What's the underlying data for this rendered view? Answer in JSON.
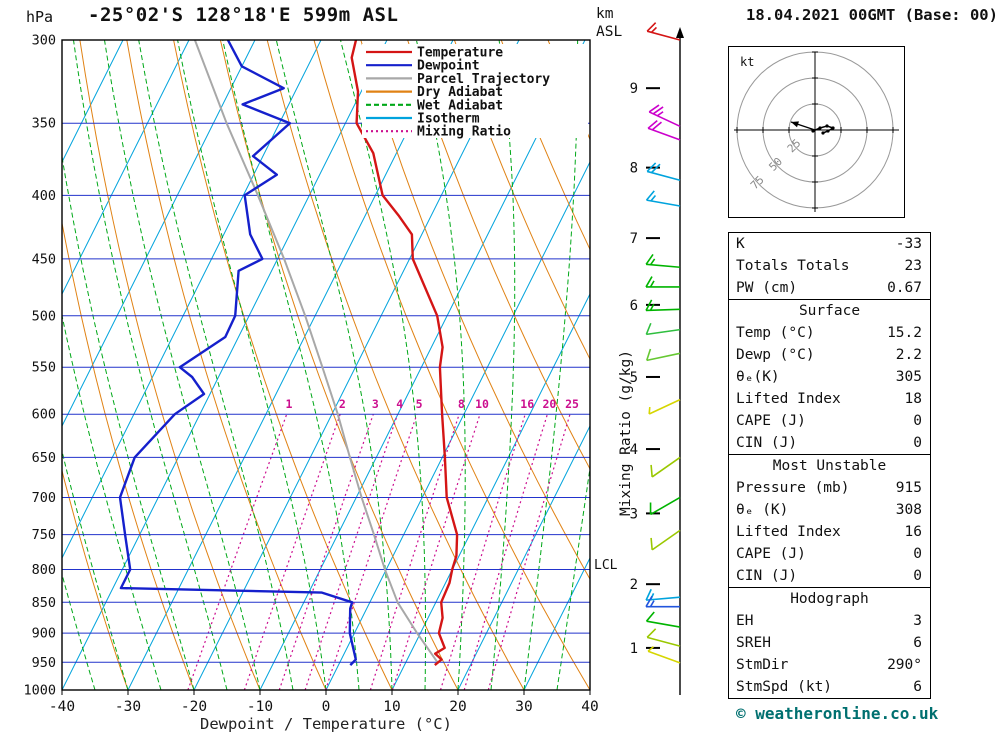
{
  "header": {
    "station": "-25°02'S 128°18'E 599m ASL",
    "datetime": "18.04.2021 00GMT (Base: 00)",
    "pressure_unit": "hPa"
  },
  "footer": "© weatheronline.co.uk",
  "colors": {
    "temperature": "#d41515",
    "dewpoint": "#1520cc",
    "parcel": "#a8a8a8",
    "dry_adiabat": "#e08214",
    "wet_adiabat": "#00a818",
    "isotherm": "#00a3dd",
    "mixing_ratio": "#cc0f8f",
    "isobar": "#2233cc"
  },
  "legend": [
    {
      "label": "Temperature",
      "color": "#d41515",
      "dash": ""
    },
    {
      "label": "Dewpoint",
      "color": "#1520cc",
      "dash": ""
    },
    {
      "label": "Parcel Trajectory",
      "color": "#a8a8a8",
      "dash": ""
    },
    {
      "label": "Dry Adiabat",
      "color": "#e08214",
      "dash": ""
    },
    {
      "label": "Wet Adiabat",
      "color": "#00a818",
      "dash": "5,3"
    },
    {
      "label": "Isotherm",
      "color": "#00a3dd",
      "dash": ""
    },
    {
      "label": "Mixing Ratio",
      "color": "#cc0f8f",
      "dash": "2,3"
    }
  ],
  "chart_data": {
    "type": "skewt_log_p",
    "xlabel": "Dewpoint / Temperature (°C)",
    "x_ticks": [
      -40,
      -30,
      -20,
      -10,
      0,
      10,
      20,
      30,
      40
    ],
    "pressure_levels": [
      300,
      350,
      400,
      450,
      500,
      550,
      600,
      650,
      700,
      750,
      800,
      850,
      900,
      950,
      1000
    ],
    "isotherms": {
      "min": -130,
      "max": 40,
      "step": 10
    },
    "dry_adiabats": {
      "min": -40,
      "max": 100,
      "step": 10
    },
    "wet_adiabats": {
      "min": -40,
      "max": 40,
      "step": 5
    },
    "mixing_ratio": {
      "axis_label": "Mixing Ratio (g/kg)",
      "values": [
        1,
        2,
        3,
        4,
        5,
        8,
        10,
        16,
        20,
        25
      ],
      "top_p": 600,
      "label_p": 593,
      "x_offset": -25
    },
    "km_axis": {
      "unit": "km",
      "ref": "ASL",
      "ticks": [
        {
          "km": 1,
          "p": 925
        },
        {
          "km": 2,
          "p": 822
        },
        {
          "km": 3,
          "p": 721
        },
        {
          "km": 4,
          "p": 640
        },
        {
          "km": 5,
          "p": 560
        },
        {
          "km": 6,
          "p": 490
        },
        {
          "km": 7,
          "p": 433
        },
        {
          "km": 8,
          "p": 380
        },
        {
          "km": 9,
          "p": 328
        }
      ],
      "lcl_label": "LCL",
      "lcl_p": 793
    },
    "temperature_profile": [
      [
        300,
        -44.7
      ],
      [
        310,
        -44.0
      ],
      [
        330,
        -40.5
      ],
      [
        350,
        -38.3
      ],
      [
        370,
        -33.5
      ],
      [
        400,
        -28.9
      ],
      [
        415,
        -25.0
      ],
      [
        430,
        -21.5
      ],
      [
        450,
        -19.5
      ],
      [
        500,
        -11.5
      ],
      [
        530,
        -8.3
      ],
      [
        550,
        -7.2
      ],
      [
        600,
        -3.3
      ],
      [
        650,
        0.4
      ],
      [
        700,
        3.7
      ],
      [
        750,
        8.1
      ],
      [
        780,
        9.6
      ],
      [
        800,
        10.0
      ],
      [
        820,
        10.6
      ],
      [
        850,
        10.8
      ],
      [
        875,
        12.2
      ],
      [
        900,
        12.8
      ],
      [
        925,
        14.8
      ],
      [
        935,
        13.8
      ],
      [
        945,
        15.2
      ],
      [
        955,
        14.6
      ]
    ],
    "dewpoint_profile": [
      [
        300,
        -64.1
      ],
      [
        315,
        -60.0
      ],
      [
        328,
        -52.0
      ],
      [
        338,
        -57.0
      ],
      [
        350,
        -48.4
      ],
      [
        372,
        -51.5
      ],
      [
        385,
        -46.5
      ],
      [
        400,
        -49.8
      ],
      [
        430,
        -46.0
      ],
      [
        450,
        -42.3
      ],
      [
        460,
        -45.0
      ],
      [
        500,
        -42.1
      ],
      [
        520,
        -42.0
      ],
      [
        550,
        -46.6
      ],
      [
        560,
        -44.0
      ],
      [
        578,
        -40.9
      ],
      [
        600,
        -43.8
      ],
      [
        650,
        -46.6
      ],
      [
        700,
        -45.8
      ],
      [
        750,
        -42.2
      ],
      [
        800,
        -38.8
      ],
      [
        828,
        -38.8
      ],
      [
        835,
        -8.0
      ],
      [
        850,
        -2.7
      ],
      [
        860,
        -2.5
      ],
      [
        900,
        -0.7
      ],
      [
        945,
        2.2
      ],
      [
        955,
        1.8
      ]
    ],
    "parcel_profile": [
      [
        300,
        -69.1
      ],
      [
        350,
        -58.0
      ],
      [
        400,
        -47.8
      ],
      [
        450,
        -39.0
      ],
      [
        500,
        -31.5
      ],
      [
        550,
        -25.0
      ],
      [
        600,
        -19.1
      ],
      [
        650,
        -14.0
      ],
      [
        700,
        -9.2
      ],
      [
        750,
        -4.5
      ],
      [
        800,
        -0.2
      ],
      [
        850,
        4.2
      ],
      [
        900,
        9.5
      ],
      [
        950,
        14.8
      ]
    ],
    "wind_barbs": [
      {
        "p": 300,
        "color": "#d41515",
        "dir": 285,
        "spd": 15
      },
      {
        "p": 352,
        "color": "#cc00cc",
        "dir": 295,
        "spd": 25
      },
      {
        "p": 361,
        "color": "#cc00cc",
        "dir": 290,
        "spd": 20
      },
      {
        "p": 389,
        "color": "#00a3dd",
        "dir": 285,
        "spd": 20
      },
      {
        "p": 408,
        "color": "#00a3dd",
        "dir": 280,
        "spd": 15
      },
      {
        "p": 457,
        "color": "#00b400",
        "dir": 275,
        "spd": 15
      },
      {
        "p": 474,
        "color": "#00b400",
        "dir": 270,
        "spd": 15
      },
      {
        "p": 494,
        "color": "#00b400",
        "dir": 268,
        "spd": 15
      },
      {
        "p": 513,
        "color": "#2fbf3f",
        "dir": 262,
        "spd": 10
      },
      {
        "p": 536,
        "color": "#66c832",
        "dir": 258,
        "spd": 10
      },
      {
        "p": 584,
        "color": "#d6d600",
        "dir": 245,
        "spd": 5
      },
      {
        "p": 650,
        "color": "#9ac800",
        "dir": 235,
        "spd": 10
      },
      {
        "p": 700,
        "color": "#00b400",
        "dir": 240,
        "spd": 10
      },
      {
        "p": 744,
        "color": "#9ac800",
        "dir": 235,
        "spd": 10
      },
      {
        "p": 842,
        "color": "#00a3dd",
        "dir": 265,
        "spd": 15
      },
      {
        "p": 857,
        "color": "#2255dd",
        "dir": 270,
        "spd": 15
      },
      {
        "p": 890,
        "color": "#00b400",
        "dir": 280,
        "spd": 10
      },
      {
        "p": 922,
        "color": "#9ac800",
        "dir": 285,
        "spd": 10
      },
      {
        "p": 951,
        "color": "#d6d600",
        "dir": 290,
        "spd": 5
      }
    ]
  },
  "hodograph": {
    "unit": "kt",
    "rings": [
      25,
      50,
      75
    ],
    "trace": [
      [
        -2,
        1
      ],
      [
        5,
        -2
      ],
      [
        12,
        -4
      ],
      [
        18,
        -2
      ],
      [
        13,
        1
      ],
      [
        8,
        3
      ]
    ],
    "arrow": [
      -24,
      -8
    ]
  },
  "table": {
    "groups": [
      {
        "header": "",
        "rows": [
          [
            "K",
            "-33"
          ],
          [
            "Totals Totals",
            "23"
          ],
          [
            "PW (cm)",
            "0.67"
          ]
        ]
      },
      {
        "header": "Surface",
        "rows": [
          [
            "Temp (°C)",
            "15.2"
          ],
          [
            "Dewp (°C)",
            "2.2"
          ],
          [
            "θₑ(K)",
            "305"
          ],
          [
            "Lifted Index",
            "18"
          ],
          [
            "CAPE (J)",
            "0"
          ],
          [
            "CIN (J)",
            "0"
          ]
        ]
      },
      {
        "header": "Most Unstable",
        "rows": [
          [
            "Pressure (mb)",
            "915"
          ],
          [
            "θₑ (K)",
            "308"
          ],
          [
            "Lifted Index",
            "16"
          ],
          [
            "CAPE (J)",
            "0"
          ],
          [
            "CIN (J)",
            "0"
          ]
        ]
      },
      {
        "header": "Hodograph",
        "rows": [
          [
            "EH",
            "3"
          ],
          [
            "SREH",
            "6"
          ],
          [
            "StmDir",
            "290°"
          ],
          [
            "StmSpd (kt)",
            "6"
          ]
        ]
      }
    ]
  }
}
